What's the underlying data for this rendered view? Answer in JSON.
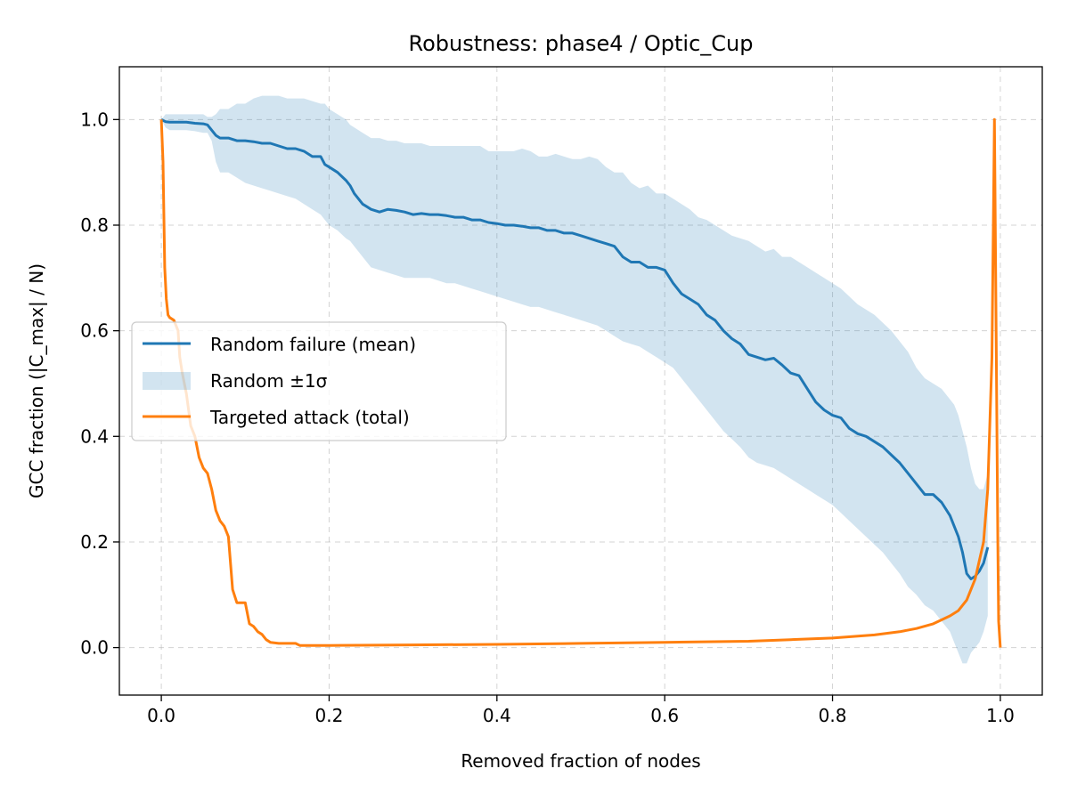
{
  "chart_data": {
    "type": "line",
    "title": "Robustness: phase4 / Optic_Cup",
    "xlabel": "Removed fraction of nodes",
    "ylabel": "GCC fraction (|C_max| / N)",
    "xlim": [
      -0.05,
      1.05
    ],
    "ylim": [
      -0.09,
      1.1
    ],
    "xticks": [
      0.0,
      0.2,
      0.4,
      0.6,
      0.8,
      1.0
    ],
    "xtick_labels": [
      "0.0",
      "0.2",
      "0.4",
      "0.6",
      "0.8",
      "1.0"
    ],
    "yticks": [
      0.0,
      0.2,
      0.4,
      0.6,
      0.8,
      1.0
    ],
    "ytick_labels": [
      "0.0",
      "0.2",
      "0.4",
      "0.6",
      "0.8",
      "1.0"
    ],
    "grid": true,
    "legend_position": "center-left",
    "colors": {
      "random": "#1f77b4",
      "band": "#1f77b4",
      "targeted": "#ff7f0e"
    },
    "series": [
      {
        "name": "Random failure (mean)",
        "kind": "line",
        "x": [
          0.0,
          0.005,
          0.01,
          0.02,
          0.03,
          0.04,
          0.05,
          0.055,
          0.06,
          0.065,
          0.07,
          0.08,
          0.09,
          0.1,
          0.11,
          0.12,
          0.13,
          0.14,
          0.15,
          0.16,
          0.17,
          0.18,
          0.19,
          0.195,
          0.2,
          0.21,
          0.22,
          0.225,
          0.23,
          0.24,
          0.245,
          0.25,
          0.26,
          0.27,
          0.28,
          0.29,
          0.3,
          0.31,
          0.32,
          0.33,
          0.34,
          0.35,
          0.36,
          0.37,
          0.38,
          0.39,
          0.4,
          0.41,
          0.42,
          0.43,
          0.44,
          0.45,
          0.46,
          0.47,
          0.48,
          0.49,
          0.5,
          0.51,
          0.52,
          0.53,
          0.54,
          0.55,
          0.56,
          0.57,
          0.58,
          0.59,
          0.6,
          0.61,
          0.62,
          0.63,
          0.64,
          0.65,
          0.66,
          0.67,
          0.68,
          0.69,
          0.7,
          0.71,
          0.72,
          0.73,
          0.74,
          0.75,
          0.76,
          0.77,
          0.78,
          0.79,
          0.8,
          0.81,
          0.82,
          0.83,
          0.84,
          0.85,
          0.86,
          0.87,
          0.88,
          0.89,
          0.9,
          0.91,
          0.92,
          0.93,
          0.94,
          0.945,
          0.95,
          0.955,
          0.96,
          0.965,
          0.97,
          0.975,
          0.98,
          0.985
        ],
        "y": [
          1.0,
          0.996,
          0.995,
          0.995,
          0.995,
          0.993,
          0.992,
          0.99,
          0.98,
          0.97,
          0.965,
          0.965,
          0.96,
          0.96,
          0.958,
          0.955,
          0.955,
          0.95,
          0.945,
          0.945,
          0.94,
          0.93,
          0.93,
          0.915,
          0.91,
          0.9,
          0.885,
          0.875,
          0.86,
          0.84,
          0.835,
          0.83,
          0.825,
          0.83,
          0.828,
          0.825,
          0.82,
          0.822,
          0.82,
          0.82,
          0.818,
          0.815,
          0.815,
          0.81,
          0.81,
          0.805,
          0.803,
          0.8,
          0.8,
          0.798,
          0.795,
          0.795,
          0.79,
          0.79,
          0.785,
          0.785,
          0.78,
          0.775,
          0.77,
          0.765,
          0.76,
          0.74,
          0.73,
          0.73,
          0.72,
          0.72,
          0.715,
          0.69,
          0.67,
          0.66,
          0.65,
          0.63,
          0.62,
          0.6,
          0.585,
          0.575,
          0.555,
          0.55,
          0.545,
          0.548,
          0.535,
          0.52,
          0.515,
          0.49,
          0.465,
          0.45,
          0.44,
          0.435,
          0.415,
          0.405,
          0.4,
          0.39,
          0.38,
          0.365,
          0.35,
          0.33,
          0.31,
          0.29,
          0.29,
          0.275,
          0.25,
          0.23,
          0.21,
          0.18,
          0.14,
          0.13,
          0.135,
          0.145,
          0.16,
          0.19
        ]
      },
      {
        "name": "Random ±1σ",
        "kind": "band",
        "x": [
          0.0,
          0.005,
          0.01,
          0.02,
          0.03,
          0.04,
          0.05,
          0.055,
          0.06,
          0.065,
          0.07,
          0.08,
          0.09,
          0.1,
          0.11,
          0.12,
          0.13,
          0.14,
          0.15,
          0.16,
          0.17,
          0.18,
          0.19,
          0.195,
          0.2,
          0.21,
          0.22,
          0.225,
          0.23,
          0.24,
          0.245,
          0.25,
          0.26,
          0.27,
          0.28,
          0.29,
          0.3,
          0.31,
          0.32,
          0.33,
          0.34,
          0.35,
          0.36,
          0.37,
          0.38,
          0.39,
          0.4,
          0.41,
          0.42,
          0.43,
          0.44,
          0.45,
          0.46,
          0.47,
          0.48,
          0.49,
          0.5,
          0.51,
          0.52,
          0.53,
          0.54,
          0.55,
          0.56,
          0.57,
          0.58,
          0.59,
          0.6,
          0.61,
          0.62,
          0.63,
          0.64,
          0.65,
          0.66,
          0.67,
          0.68,
          0.69,
          0.7,
          0.71,
          0.72,
          0.73,
          0.74,
          0.75,
          0.76,
          0.77,
          0.78,
          0.79,
          0.8,
          0.81,
          0.82,
          0.83,
          0.84,
          0.85,
          0.86,
          0.87,
          0.88,
          0.89,
          0.9,
          0.91,
          0.92,
          0.93,
          0.94,
          0.945,
          0.95,
          0.955,
          0.96,
          0.965,
          0.97,
          0.975,
          0.98,
          0.985
        ],
        "upper": [
          1.0,
          1.01,
          1.01,
          1.01,
          1.01,
          1.01,
          1.01,
          1.005,
          1.005,
          1.01,
          1.02,
          1.02,
          1.03,
          1.03,
          1.04,
          1.045,
          1.045,
          1.045,
          1.04,
          1.04,
          1.04,
          1.035,
          1.03,
          1.03,
          1.02,
          1.01,
          1.0,
          0.99,
          0.985,
          0.975,
          0.97,
          0.965,
          0.965,
          0.96,
          0.96,
          0.955,
          0.955,
          0.955,
          0.95,
          0.95,
          0.95,
          0.95,
          0.95,
          0.95,
          0.95,
          0.94,
          0.94,
          0.94,
          0.94,
          0.945,
          0.94,
          0.93,
          0.93,
          0.935,
          0.93,
          0.925,
          0.925,
          0.93,
          0.925,
          0.91,
          0.9,
          0.9,
          0.88,
          0.87,
          0.875,
          0.86,
          0.86,
          0.85,
          0.84,
          0.83,
          0.815,
          0.81,
          0.8,
          0.79,
          0.78,
          0.775,
          0.77,
          0.76,
          0.75,
          0.755,
          0.74,
          0.74,
          0.73,
          0.72,
          0.71,
          0.7,
          0.69,
          0.68,
          0.665,
          0.65,
          0.64,
          0.63,
          0.615,
          0.6,
          0.58,
          0.56,
          0.53,
          0.51,
          0.5,
          0.49,
          0.47,
          0.46,
          0.44,
          0.41,
          0.38,
          0.34,
          0.31,
          0.3,
          0.3,
          0.33
        ],
        "lower": [
          1.0,
          0.985,
          0.98,
          0.98,
          0.98,
          0.978,
          0.975,
          0.975,
          0.96,
          0.92,
          0.9,
          0.9,
          0.89,
          0.88,
          0.875,
          0.87,
          0.865,
          0.86,
          0.855,
          0.85,
          0.84,
          0.83,
          0.82,
          0.81,
          0.8,
          0.79,
          0.775,
          0.77,
          0.76,
          0.74,
          0.73,
          0.72,
          0.715,
          0.71,
          0.705,
          0.7,
          0.7,
          0.7,
          0.7,
          0.695,
          0.69,
          0.69,
          0.685,
          0.68,
          0.675,
          0.67,
          0.665,
          0.66,
          0.655,
          0.65,
          0.645,
          0.645,
          0.64,
          0.635,
          0.63,
          0.625,
          0.62,
          0.615,
          0.61,
          0.6,
          0.59,
          0.58,
          0.575,
          0.57,
          0.56,
          0.55,
          0.54,
          0.53,
          0.51,
          0.49,
          0.47,
          0.45,
          0.43,
          0.41,
          0.395,
          0.38,
          0.36,
          0.35,
          0.345,
          0.34,
          0.33,
          0.32,
          0.31,
          0.3,
          0.29,
          0.28,
          0.27,
          0.255,
          0.24,
          0.225,
          0.21,
          0.195,
          0.18,
          0.16,
          0.14,
          0.115,
          0.1,
          0.08,
          0.07,
          0.05,
          0.03,
          0.01,
          -0.01,
          -0.03,
          -0.03,
          -0.01,
          0.0,
          0.01,
          0.03,
          0.06
        ]
      },
      {
        "name": "Targeted attack (total)",
        "kind": "line",
        "x": [
          0.0,
          0.002,
          0.004,
          0.006,
          0.008,
          0.01,
          0.015,
          0.02,
          0.022,
          0.025,
          0.03,
          0.035,
          0.04,
          0.045,
          0.05,
          0.055,
          0.06,
          0.065,
          0.07,
          0.075,
          0.08,
          0.085,
          0.09,
          0.095,
          0.1,
          0.105,
          0.11,
          0.115,
          0.12,
          0.125,
          0.13,
          0.14,
          0.15,
          0.16,
          0.165,
          0.17,
          0.2,
          0.3,
          0.4,
          0.5,
          0.6,
          0.7,
          0.75,
          0.8,
          0.85,
          0.88,
          0.9,
          0.92,
          0.94,
          0.95,
          0.96,
          0.97,
          0.98,
          0.985,
          0.99,
          0.993,
          0.995,
          0.997,
          0.998,
          1.0
        ],
        "y": [
          1.0,
          0.92,
          0.72,
          0.66,
          0.63,
          0.625,
          0.62,
          0.6,
          0.55,
          0.52,
          0.48,
          0.42,
          0.4,
          0.36,
          0.34,
          0.33,
          0.3,
          0.26,
          0.24,
          0.23,
          0.21,
          0.11,
          0.085,
          0.085,
          0.085,
          0.045,
          0.04,
          0.03,
          0.025,
          0.015,
          0.01,
          0.008,
          0.008,
          0.008,
          0.004,
          0.004,
          0.004,
          0.005,
          0.006,
          0.008,
          0.01,
          0.012,
          0.015,
          0.018,
          0.024,
          0.03,
          0.036,
          0.045,
          0.06,
          0.07,
          0.09,
          0.13,
          0.2,
          0.3,
          0.55,
          1.0,
          0.6,
          0.2,
          0.05,
          0.0
        ]
      }
    ]
  }
}
